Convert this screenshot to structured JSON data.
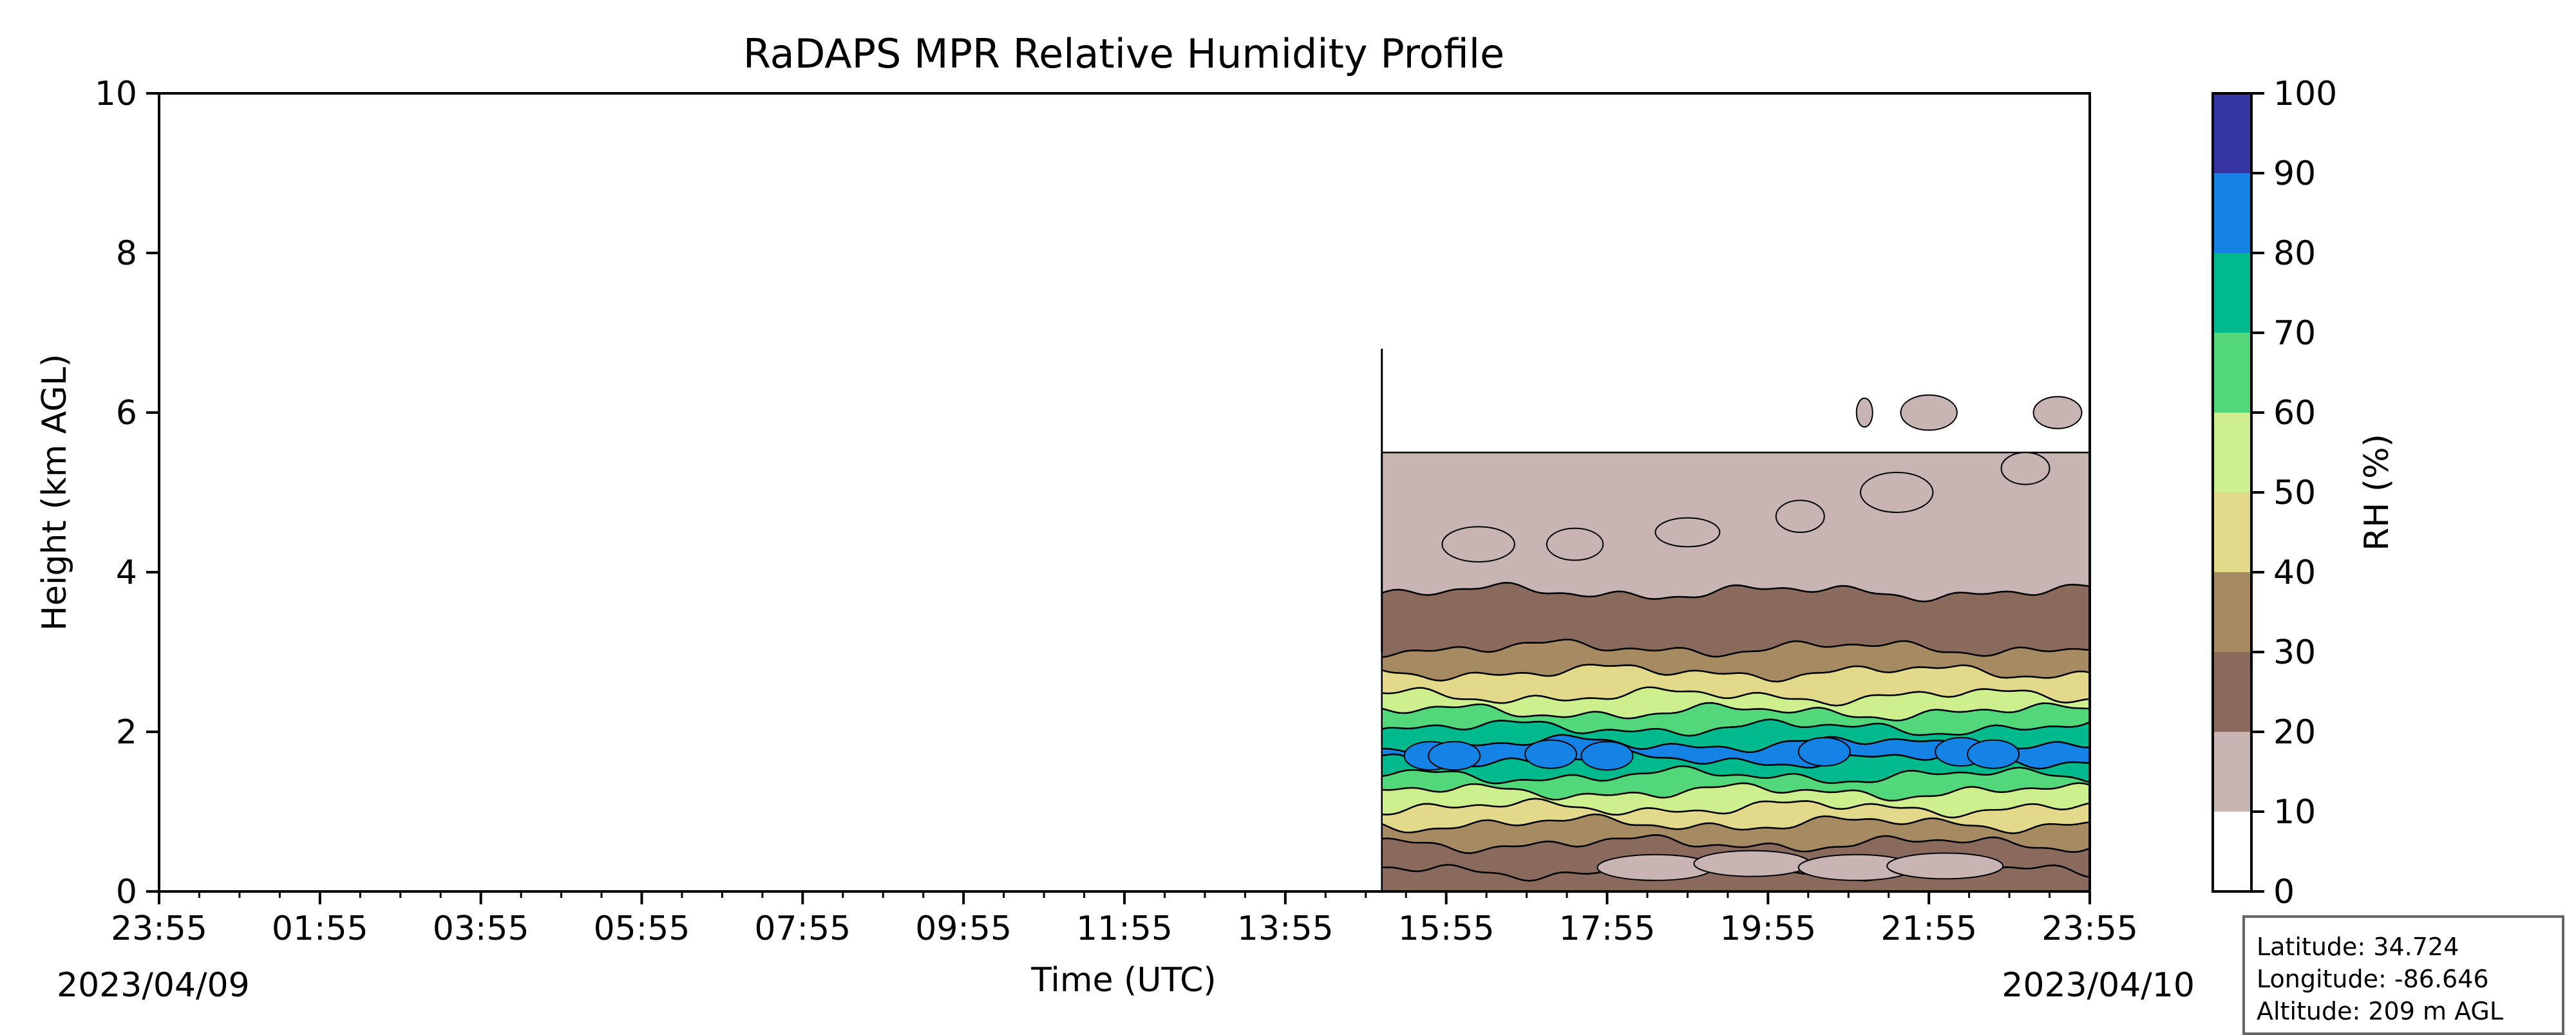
{
  "chart_data": {
    "type": "heatmap",
    "title": "RaDAPS MPR Relative Humidity Profile",
    "xlabel": "Time (UTC)",
    "ylabel": "Height (km AGL)",
    "x_unit": "hours since 2023/04/09 23:55 UTC",
    "xlim": [
      0,
      24
    ],
    "ylim": [
      0,
      10
    ],
    "x_tick_labels": [
      "23:55",
      "01:55",
      "03:55",
      "05:55",
      "07:55",
      "09:55",
      "11:55",
      "13:55",
      "15:55",
      "17:55",
      "19:55",
      "21:55",
      "23:55"
    ],
    "y_tick_labels": [
      "0",
      "2",
      "4",
      "6",
      "8",
      "10"
    ],
    "start_date": "2023/04/09",
    "end_date": "2023/04/10",
    "data_start_hour": 15.2,
    "colorbar": {
      "label": "RH (%)",
      "min": 0,
      "max": 100,
      "tick_labels": [
        "0",
        "10",
        "20",
        "30",
        "40",
        "50",
        "60",
        "70",
        "80",
        "90",
        "100"
      ],
      "levels": [
        {
          "range": [
            0,
            10
          ],
          "color": "#ffffff"
        },
        {
          "range": [
            10,
            20
          ],
          "color": "#c8b5b3"
        },
        {
          "range": [
            20,
            30
          ],
          "color": "#8b6a5e"
        },
        {
          "range": [
            30,
            40
          ],
          "color": "#a68a62"
        },
        {
          "range": [
            40,
            50
          ],
          "color": "#e3d98a"
        },
        {
          "range": [
            50,
            60
          ],
          "color": "#cdef8d"
        },
        {
          "range": [
            60,
            70
          ],
          "color": "#52d87a"
        },
        {
          "range": [
            70,
            80
          ],
          "color": "#00b98c"
        },
        {
          "range": [
            80,
            90
          ],
          "color": "#1582e6"
        },
        {
          "range": [
            90,
            100
          ],
          "color": "#3535a3"
        }
      ]
    },
    "profile_bands_km": [
      {
        "rh": 20,
        "from": 0.0,
        "to": 0.25
      },
      {
        "rh": 25,
        "from": 0.25,
        "to": 0.6
      },
      {
        "rh": 35,
        "from": 0.6,
        "to": 0.85
      },
      {
        "rh": 45,
        "from": 0.85,
        "to": 1.05
      },
      {
        "rh": 55,
        "from": 1.05,
        "to": 1.25
      },
      {
        "rh": 65,
        "from": 1.25,
        "to": 1.45
      },
      {
        "rh": 75,
        "from": 1.45,
        "to": 1.65
      },
      {
        "rh": 85,
        "from": 1.65,
        "to": 1.85
      },
      {
        "rh": 75,
        "from": 1.85,
        "to": 2.05
      },
      {
        "rh": 65,
        "from": 2.05,
        "to": 2.25
      },
      {
        "rh": 55,
        "from": 2.25,
        "to": 2.45
      },
      {
        "rh": 45,
        "from": 2.45,
        "to": 2.75
      },
      {
        "rh": 35,
        "from": 2.75,
        "to": 3.05
      },
      {
        "rh": 25,
        "from": 3.05,
        "to": 3.75
      },
      {
        "rh": 15,
        "from": 3.75,
        "to": 5.5
      }
    ],
    "station": {
      "latitude_label": "Latitude: 34.724",
      "longitude_label": "Longitude: -86.646",
      "altitude_label": "Altitude: 209 m AGL"
    }
  }
}
